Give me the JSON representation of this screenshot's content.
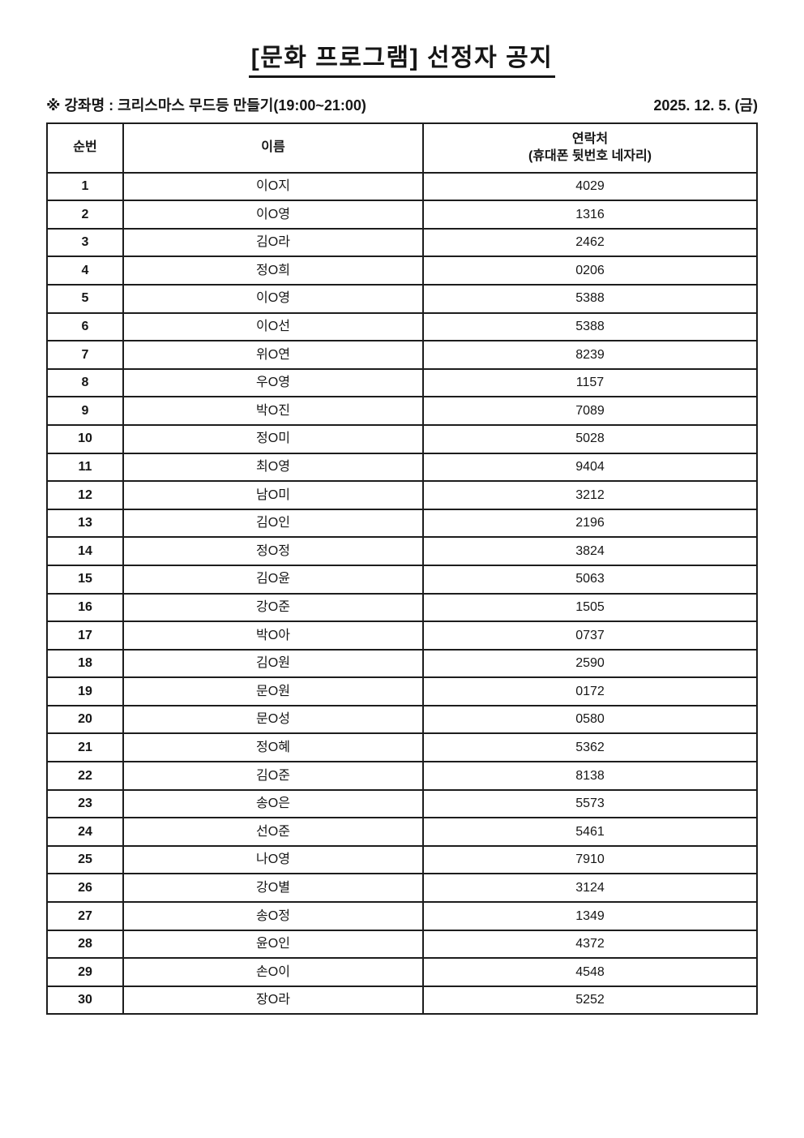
{
  "page": {
    "title": "[문화 프로그램] 선정자 공지"
  },
  "meta": {
    "course_label": "※ 강좌명 : 크리스마스 무드등 만들기(19:00~21:00)",
    "date": "2025. 12. 5. (금)"
  },
  "table": {
    "headers": {
      "no": "순번",
      "name": "이름",
      "contact_line1": "연락처",
      "contact_line2": "(휴대폰 뒷번호 네자리)"
    },
    "rows": [
      {
        "no": "1",
        "name": "이O지",
        "contact": "4029"
      },
      {
        "no": "2",
        "name": "이O영",
        "contact": "1316"
      },
      {
        "no": "3",
        "name": "김O라",
        "contact": "2462"
      },
      {
        "no": "4",
        "name": "정O희",
        "contact": "0206"
      },
      {
        "no": "5",
        "name": "이O영",
        "contact": "5388"
      },
      {
        "no": "6",
        "name": "이O선",
        "contact": "5388"
      },
      {
        "no": "7",
        "name": "위O연",
        "contact": "8239"
      },
      {
        "no": "8",
        "name": "우O영",
        "contact": "1157"
      },
      {
        "no": "9",
        "name": "박O진",
        "contact": "7089"
      },
      {
        "no": "10",
        "name": "정O미",
        "contact": "5028"
      },
      {
        "no": "11",
        "name": "최O영",
        "contact": "9404"
      },
      {
        "no": "12",
        "name": "남O미",
        "contact": "3212"
      },
      {
        "no": "13",
        "name": "김O인",
        "contact": "2196"
      },
      {
        "no": "14",
        "name": "정O정",
        "contact": "3824"
      },
      {
        "no": "15",
        "name": "김O윤",
        "contact": "5063"
      },
      {
        "no": "16",
        "name": "강O준",
        "contact": "1505"
      },
      {
        "no": "17",
        "name": "박O아",
        "contact": "0737"
      },
      {
        "no": "18",
        "name": "김O원",
        "contact": "2590"
      },
      {
        "no": "19",
        "name": "문O원",
        "contact": "0172"
      },
      {
        "no": "20",
        "name": "문O성",
        "contact": "0580"
      },
      {
        "no": "21",
        "name": "정O혜",
        "contact": "5362"
      },
      {
        "no": "22",
        "name": "김O준",
        "contact": "8138"
      },
      {
        "no": "23",
        "name": "송O은",
        "contact": "5573"
      },
      {
        "no": "24",
        "name": "선O준",
        "contact": "5461"
      },
      {
        "no": "25",
        "name": "나O영",
        "contact": "7910"
      },
      {
        "no": "26",
        "name": "강O별",
        "contact": "3124"
      },
      {
        "no": "27",
        "name": "송O정",
        "contact": "1349"
      },
      {
        "no": "28",
        "name": "윤O인",
        "contact": "4372"
      },
      {
        "no": "29",
        "name": "손O이",
        "contact": "4548"
      },
      {
        "no": "30",
        "name": "장O라",
        "contact": "5252"
      }
    ]
  },
  "colors": {
    "text": "#161616",
    "border": "#1d1d1d",
    "background": "#ffffff"
  }
}
